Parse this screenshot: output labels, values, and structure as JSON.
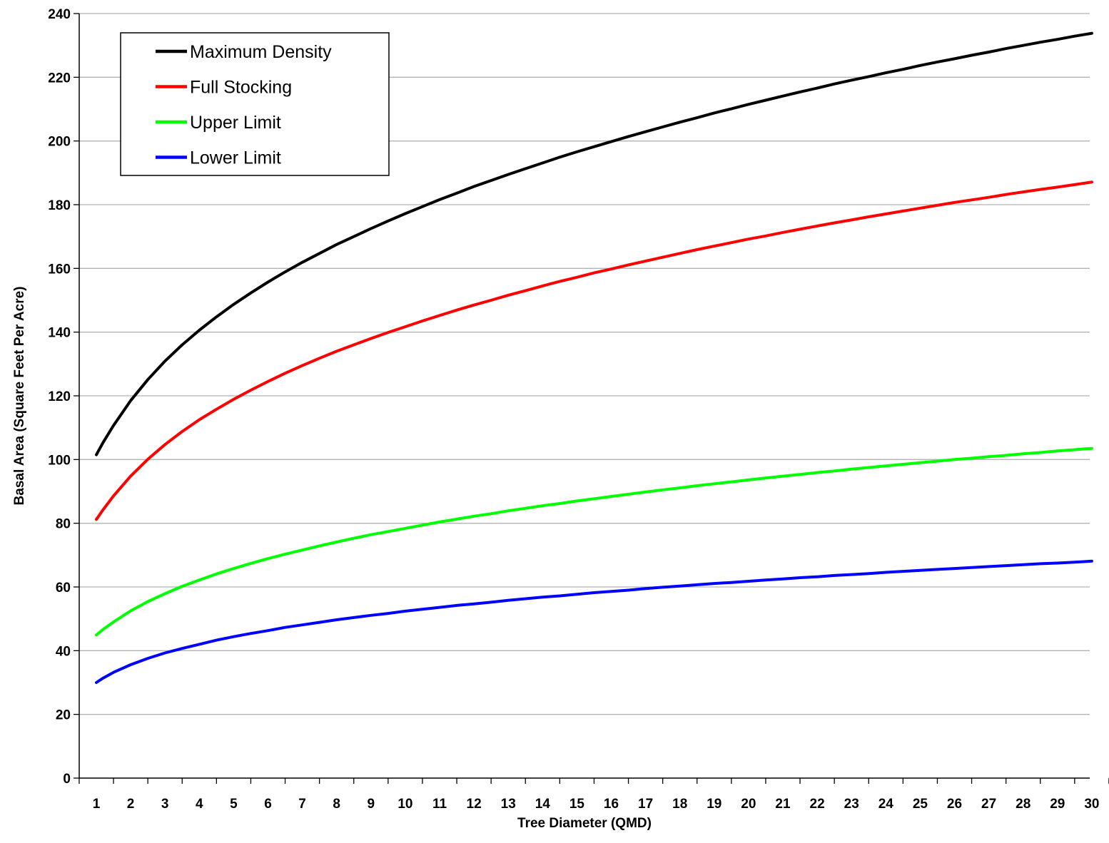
{
  "chart_data": {
    "type": "line",
    "title": "",
    "xlabel": "Tree Diameter (QMD)",
    "ylabel": "Basal Area (Square Feet Per Acre)",
    "xlim": [
      1,
      30
    ],
    "ylim": [
      0,
      240
    ],
    "ytick_step": 20,
    "grid": true,
    "legend_position": "top-left",
    "x": [
      1,
      1.2,
      1.5,
      2,
      2.5,
      3,
      3.5,
      4,
      4.5,
      5,
      5.5,
      6,
      6.5,
      7,
      7.5,
      8,
      8.5,
      9,
      9.5,
      10,
      10.5,
      11,
      11.5,
      12,
      12.5,
      13,
      13.5,
      14,
      14.5,
      15,
      15.5,
      16,
      16.5,
      17,
      17.5,
      18,
      18.5,
      19,
      19.5,
      20,
      20.5,
      21,
      21.5,
      22,
      22.5,
      23,
      23.5,
      24,
      24.5,
      25,
      25.5,
      26,
      26.5,
      27,
      27.5,
      28,
      28.5,
      29,
      29.5,
      30
    ],
    "series": [
      {
        "name": "Maximum Density",
        "color": "#000000",
        "values": [
          101.5,
          105.4,
          110.7,
          118.5,
          125.1,
          130.9,
          136.0,
          140.6,
          144.8,
          148.7,
          152.3,
          155.7,
          158.9,
          161.9,
          164.7,
          167.5,
          170.0,
          172.5,
          174.9,
          177.2,
          179.4,
          181.6,
          183.6,
          185.7,
          187.6,
          189.5,
          191.3,
          193.1,
          194.9,
          196.6,
          198.2,
          199.8,
          201.4,
          202.9,
          204.4,
          205.9,
          207.3,
          208.8,
          210.1,
          211.5,
          212.8,
          214.1,
          215.4,
          216.6,
          217.9,
          219.1,
          220.2,
          221.4,
          222.5,
          223.7,
          224.8,
          225.8,
          226.9,
          227.9,
          229.0,
          230.0,
          231.0,
          231.9,
          232.9,
          233.8
        ]
      },
      {
        "name": "Full Stocking",
        "color": "#ff0000",
        "values": [
          81.2,
          84.3,
          88.6,
          94.8,
          100.1,
          104.7,
          108.8,
          112.5,
          115.8,
          118.9,
          121.8,
          124.5,
          127.1,
          129.5,
          131.8,
          134.0,
          136.0,
          138.0,
          139.9,
          141.7,
          143.5,
          145.2,
          146.9,
          148.5,
          150.0,
          151.6,
          153.0,
          154.5,
          155.9,
          157.2,
          158.6,
          159.8,
          161.1,
          162.3,
          163.5,
          164.7,
          165.9,
          167.0,
          168.1,
          169.2,
          170.2,
          171.3,
          172.3,
          173.3,
          174.3,
          175.2,
          176.2,
          177.1,
          178.0,
          178.9,
          179.8,
          180.7,
          181.5,
          182.3,
          183.2,
          184.0,
          184.8,
          185.5,
          186.3,
          187.1
        ]
      },
      {
        "name": "Upper Limit",
        "color": "#00ff00",
        "values": [
          44.9,
          46.7,
          49.0,
          52.5,
          55.4,
          57.9,
          60.2,
          62.2,
          64.1,
          65.8,
          67.4,
          68.9,
          70.3,
          71.6,
          72.9,
          74.1,
          75.3,
          76.4,
          77.4,
          78.4,
          79.4,
          80.4,
          81.3,
          82.2,
          83.0,
          83.9,
          84.7,
          85.5,
          86.2,
          87.0,
          87.7,
          88.4,
          89.1,
          89.8,
          90.5,
          91.1,
          91.8,
          92.4,
          93.0,
          93.6,
          94.2,
          94.8,
          95.3,
          95.9,
          96.4,
          97.0,
          97.5,
          98.0,
          98.5,
          99.0,
          99.5,
          100.0,
          100.4,
          100.9,
          101.3,
          101.8,
          102.2,
          102.7,
          103.1,
          103.5
        ]
      },
      {
        "name": "Lower Limit",
        "color": "#0000ff",
        "values": [
          30.0,
          31.4,
          33.2,
          35.6,
          37.6,
          39.3,
          40.7,
          42.0,
          43.3,
          44.4,
          45.4,
          46.3,
          47.3,
          48.1,
          48.9,
          49.7,
          50.4,
          51.1,
          51.7,
          52.4,
          53.0,
          53.6,
          54.2,
          54.7,
          55.2,
          55.8,
          56.3,
          56.8,
          57.2,
          57.7,
          58.2,
          58.6,
          59.0,
          59.5,
          59.9,
          60.3,
          60.7,
          61.1,
          61.4,
          61.8,
          62.2,
          62.5,
          62.9,
          63.2,
          63.6,
          63.9,
          64.2,
          64.6,
          64.9,
          65.2,
          65.5,
          65.8,
          66.1,
          66.4,
          66.7,
          67.0,
          67.3,
          67.5,
          67.8,
          68.1
        ]
      }
    ],
    "yticks": [
      "0",
      "20",
      "40",
      "60",
      "80",
      "100",
      "120",
      "140",
      "160",
      "180",
      "200",
      "220",
      "240"
    ],
    "xticks": [
      "1",
      "2",
      "3",
      "4",
      "5",
      "6",
      "7",
      "8",
      "9",
      "10",
      "11",
      "12",
      "13",
      "14",
      "15",
      "16",
      "17",
      "18",
      "19",
      "20",
      "21",
      "22",
      "23",
      "24",
      "25",
      "26",
      "27",
      "28",
      "29",
      "30"
    ]
  }
}
